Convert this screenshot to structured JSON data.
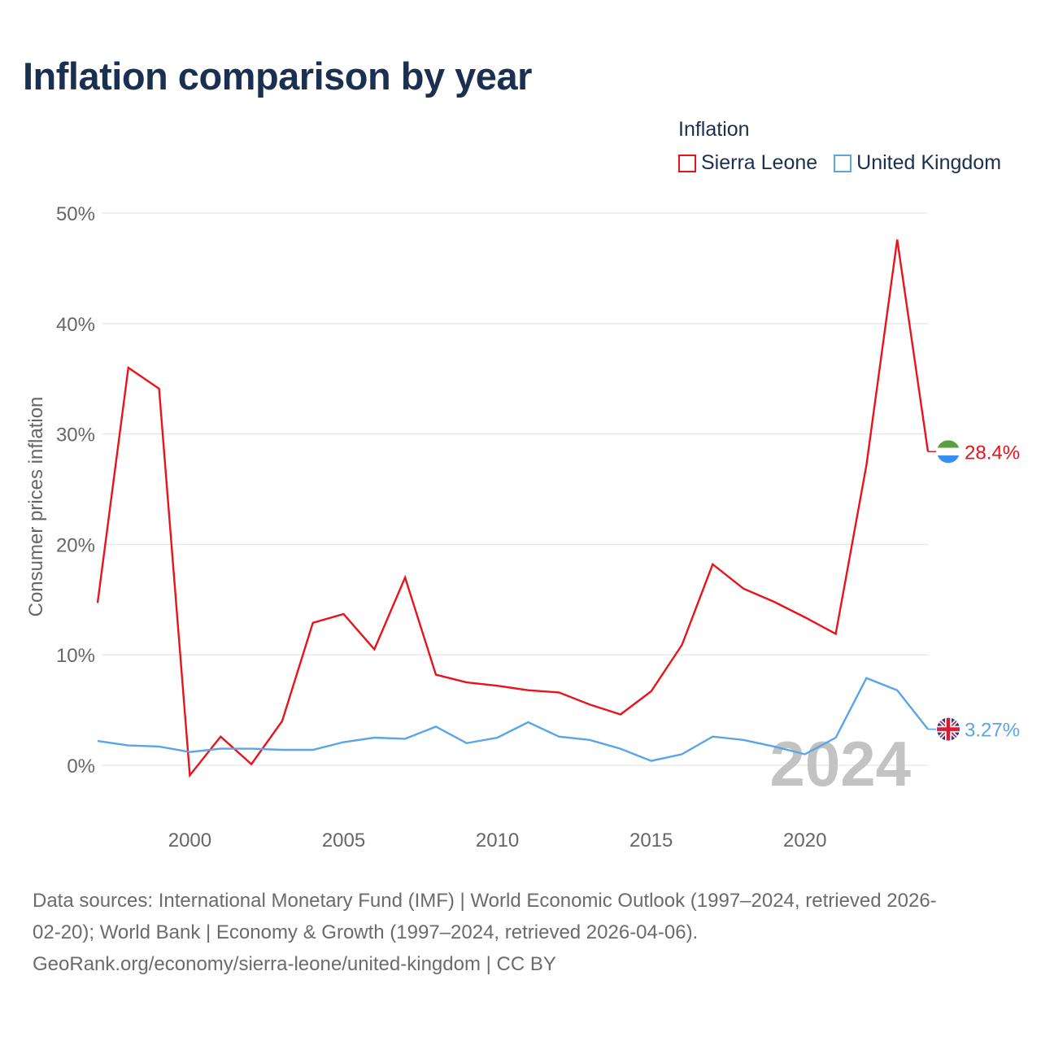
{
  "header": {
    "title": "Inflation comparison by year"
  },
  "legend": {
    "title": "Inflation",
    "items": [
      {
        "name": "Sierra Leone",
        "color": "#e8131b"
      },
      {
        "name": "United Kingdom",
        "color": "#5ba4e6"
      }
    ]
  },
  "watermark": "2024",
  "footer": {
    "source_line1": "Data sources: International Monetary Fund (IMF) | World Economic Outlook (1997–2024, retrieved 2026-",
    "source_line2": "02-20); World Bank | Economy & Growth (1997–2024, retrieved 2026-04-06).",
    "source_line3": "GeoRank.org/economy/sierra-leone/united-kingdom | CC BY"
  },
  "chart_data": {
    "type": "line",
    "title": "Inflation comparison by year",
    "xlabel": "",
    "ylabel": "Consumer prices inflation",
    "xlim": [
      1997,
      2024
    ],
    "ylim": [
      -5,
      50
    ],
    "x_ticks": [
      2000,
      2005,
      2010,
      2015,
      2020
    ],
    "y_ticks": [
      0,
      10,
      20,
      30,
      40,
      50
    ],
    "y_tick_labels": [
      "0%",
      "10%",
      "20%",
      "30%",
      "40%",
      "50%"
    ],
    "grid": true,
    "legend_position": "top-right",
    "x": [
      1997,
      1998,
      1999,
      2000,
      2001,
      2002,
      2003,
      2004,
      2005,
      2006,
      2007,
      2008,
      2009,
      2010,
      2011,
      2012,
      2013,
      2014,
      2015,
      2016,
      2017,
      2018,
      2019,
      2020,
      2021,
      2022,
      2023,
      2024
    ],
    "series": [
      {
        "name": "Sierra Leone",
        "color": "#e8131b",
        "end_label": "28.4%",
        "flag_icon": "sierra-leone-flag-icon",
        "values": [
          14.7,
          36.0,
          34.1,
          -0.9,
          2.6,
          0.1,
          4.0,
          12.9,
          13.7,
          10.5,
          17.0,
          8.2,
          7.5,
          7.2,
          6.8,
          6.6,
          5.5,
          4.6,
          6.7,
          10.9,
          18.2,
          16.0,
          14.8,
          13.4,
          11.9,
          27.2,
          47.6,
          28.4
        ]
      },
      {
        "name": "United Kingdom",
        "color": "#5ba4e6",
        "end_label": "3.27%",
        "flag_icon": "uk-flag-icon",
        "values": [
          2.2,
          1.8,
          1.7,
          1.2,
          1.5,
          1.5,
          1.4,
          1.4,
          2.1,
          2.5,
          2.4,
          3.5,
          2.0,
          2.5,
          3.9,
          2.6,
          2.3,
          1.5,
          0.4,
          1.0,
          2.6,
          2.3,
          1.7,
          1.0,
          2.5,
          7.9,
          6.8,
          3.27
        ]
      }
    ]
  }
}
